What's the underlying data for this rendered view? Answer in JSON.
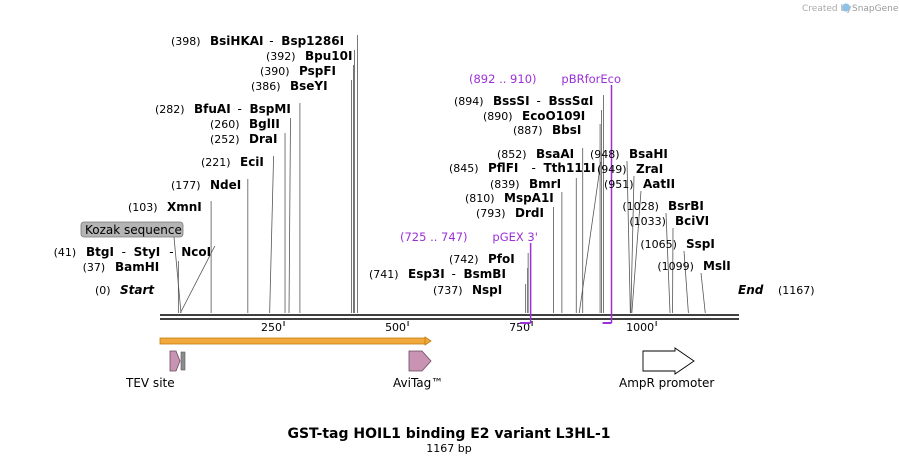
{
  "credit": {
    "prefix": "Created by",
    "brand": "SnapGene"
  },
  "map": {
    "title": "GST-tag HOIL1 binding E2 variant L3HL-1",
    "length_label": "1167 bp",
    "length_bp": 1167
  },
  "axis_ticks": [
    {
      "bp": 250,
      "label": "250"
    },
    {
      "bp": 500,
      "label": "500"
    },
    {
      "bp": 750,
      "label": "750"
    },
    {
      "bp": 1000,
      "label": "1000"
    }
  ],
  "ends": {
    "start": {
      "pos_label": "(0)",
      "name": "Start"
    },
    "end": {
      "pos_label": "(1167)",
      "name": "End"
    }
  },
  "enzymes_left": [
    {
      "id": "btgi",
      "pos": 41,
      "pos_label": "(41)",
      "names": [
        "BtgI",
        "StyI",
        "NcoI"
      ]
    },
    {
      "id": "bamhi",
      "pos": 37,
      "pos_label": "(37)",
      "names": [
        "BamHI"
      ]
    },
    {
      "id": "xmni",
      "pos": 103,
      "pos_label": "(103)",
      "names": [
        "XmnI"
      ]
    },
    {
      "id": "ndei",
      "pos": 177,
      "pos_label": "(177)",
      "names": [
        "NdeI"
      ]
    },
    {
      "id": "ecii",
      "pos": 221,
      "pos_label": "(221)",
      "names": [
        "EciI"
      ]
    },
    {
      "id": "drai",
      "pos": 252,
      "pos_label": "(252)",
      "names": [
        "DraI"
      ]
    },
    {
      "id": "bglii",
      "pos": 260,
      "pos_label": "(260)",
      "names": [
        "BglII"
      ]
    },
    {
      "id": "bfuai",
      "pos": 282,
      "pos_label": "(282)",
      "names": [
        "BfuAI",
        "BspMI"
      ]
    },
    {
      "id": "bseyi",
      "pos": 386,
      "pos_label": "(386)",
      "names": [
        "BseYI"
      ]
    },
    {
      "id": "pspfi",
      "pos": 390,
      "pos_label": "(390)",
      "names": [
        "PspFI"
      ]
    },
    {
      "id": "bpu10i",
      "pos": 392,
      "pos_label": "(392)",
      "names": [
        "Bpu10I"
      ]
    },
    {
      "id": "bsihkai",
      "pos": 398,
      "pos_label": "(398)",
      "names": [
        "BsiHKAI",
        "Bsp1286I"
      ]
    }
  ],
  "enzymes_mid": [
    {
      "id": "nspi",
      "pos": 737,
      "pos_label": "(737)",
      "names": [
        "NspI"
      ]
    },
    {
      "id": "esp3i",
      "pos": 741,
      "pos_label": "(741)",
      "names": [
        "Esp3I",
        "BsmBI"
      ]
    },
    {
      "id": "pfoi",
      "pos": 742,
      "pos_label": "(742)",
      "names": [
        "PfoI"
      ]
    },
    {
      "id": "drdi",
      "pos": 793,
      "pos_label": "(793)",
      "names": [
        "DrdI"
      ]
    },
    {
      "id": "mspa1i",
      "pos": 810,
      "pos_label": "(810)",
      "names": [
        "MspA1I"
      ]
    },
    {
      "id": "bmri",
      "pos": 839,
      "pos_label": "(839)",
      "names": [
        "BmrI"
      ]
    },
    {
      "id": "pflfi",
      "pos": 845,
      "pos_label": "(845)",
      "names": [
        "PflFI",
        "Tth111I"
      ]
    },
    {
      "id": "bsaai",
      "pos": 852,
      "pos_label": "(852)",
      "names": [
        "BsaAI"
      ]
    },
    {
      "id": "bbsi",
      "pos": 887,
      "pos_label": "(887)",
      "names": [
        "BbsI"
      ]
    },
    {
      "id": "eco0109i",
      "pos": 890,
      "pos_label": "(890)",
      "names": [
        "EcoO109I"
      ]
    },
    {
      "id": "bsssi",
      "pos": 894,
      "pos_label": "(894)",
      "names": [
        "BssSI",
        "BssSαI"
      ]
    }
  ],
  "enzymes_right": [
    {
      "id": "bsahi",
      "pos": 948,
      "pos_label": "(948)",
      "names": [
        "BsaHI"
      ]
    },
    {
      "id": "zrai",
      "pos": 949,
      "pos_label": "(949)",
      "names": [
        "ZraI"
      ]
    },
    {
      "id": "aatii",
      "pos": 951,
      "pos_label": "(951)",
      "names": [
        "AatII"
      ]
    },
    {
      "id": "bsrbi",
      "pos": 1028,
      "pos_label": "(1028)",
      "names": [
        "BsrBI"
      ]
    },
    {
      "id": "bcivi",
      "pos": 1033,
      "pos_label": "(1033)",
      "names": [
        "BciVI"
      ]
    },
    {
      "id": "sspi",
      "pos": 1065,
      "pos_label": "(1065)",
      "names": [
        "SspI"
      ]
    },
    {
      "id": "msli",
      "pos": 1099,
      "pos_label": "(1099)",
      "names": [
        "MslI"
      ]
    }
  ],
  "primers": [
    {
      "id": "pgex3",
      "start": 725,
      "end": 747,
      "range_label": "(725 .. 747)",
      "name": "pGEX 3'",
      "color": "#9b30d9"
    },
    {
      "id": "pbrforeco",
      "start": 892,
      "end": 910,
      "range_label": "(892 .. 910)",
      "name": "pBRforEco",
      "color": "#9b30d9"
    }
  ],
  "features": [
    {
      "id": "kozak",
      "label": "Kozak sequence",
      "color": "#b4b4b4"
    },
    {
      "id": "gst-orf",
      "label": "",
      "color": "#f2a93b"
    },
    {
      "id": "tev",
      "label": "TEV site",
      "color": "#c994b3"
    },
    {
      "id": "avitag",
      "label": "AviTag™",
      "color": "#c994b3"
    },
    {
      "id": "ampr-promoter",
      "label": "AmpR promoter",
      "color": "#ffffff"
    }
  ]
}
